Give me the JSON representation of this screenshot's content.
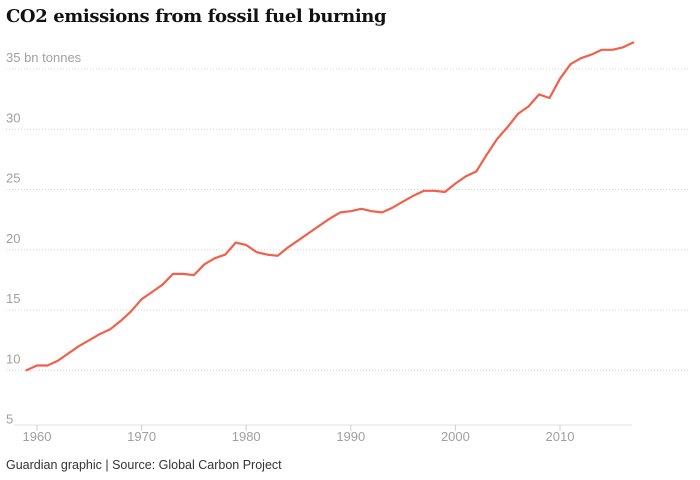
{
  "chart_data": {
    "type": "line",
    "title": "CO2 emissions from fossil fuel burning",
    "unit_label": "bn tonnes",
    "xlabel": "",
    "ylabel": "",
    "xlim": [
      1958,
      2017
    ],
    "ylim": [
      5,
      36
    ],
    "y_ticks": [
      5,
      10,
      15,
      20,
      25,
      30,
      35
    ],
    "x_ticks": [
      1960,
      1970,
      1980,
      1990,
      2000,
      2010
    ],
    "grid": "horizontal dotted",
    "series": [
      {
        "color": "#f0604a",
        "x": [
          1959,
          1960,
          1961,
          1962,
          1963,
          1964,
          1965,
          1966,
          1967,
          1968,
          1969,
          1970,
          1971,
          1972,
          1973,
          1974,
          1975,
          1976,
          1977,
          1978,
          1979,
          1980,
          1981,
          1982,
          1983,
          1984,
          1985,
          1986,
          1987,
          1988,
          1989,
          1990,
          1991,
          1992,
          1993,
          1994,
          1995,
          1996,
          1997,
          1998,
          1999,
          2000,
          2001,
          2002,
          2003,
          2004,
          2005,
          2006,
          2007,
          2008,
          2009,
          2010,
          2011,
          2012,
          2013,
          2014,
          2015,
          2016,
          2017
        ],
        "values": [
          9.0,
          9.4,
          9.4,
          9.8,
          10.4,
          11.0,
          11.5,
          12.0,
          12.4,
          13.1,
          13.9,
          14.9,
          15.5,
          16.1,
          17.0,
          17.0,
          16.9,
          17.8,
          18.3,
          18.6,
          19.6,
          19.4,
          18.8,
          18.6,
          18.5,
          19.2,
          19.8,
          20.4,
          21.0,
          21.6,
          22.1,
          22.2,
          22.4,
          22.2,
          22.1,
          22.5,
          23.0,
          23.5,
          23.9,
          23.9,
          23.8,
          24.5,
          25.1,
          25.5,
          26.9,
          28.2,
          29.2,
          30.3,
          30.9,
          31.9,
          31.6,
          33.2,
          34.4,
          34.9,
          35.2,
          35.6,
          35.6,
          35.8,
          36.2
        ]
      }
    ]
  },
  "footer": {
    "source": "Guardian graphic | Source: Global Carbon Project"
  },
  "colors": {
    "line": "#f0604a",
    "grid": "#d4d4d4",
    "tick_text": "#a0a0a0"
  }
}
